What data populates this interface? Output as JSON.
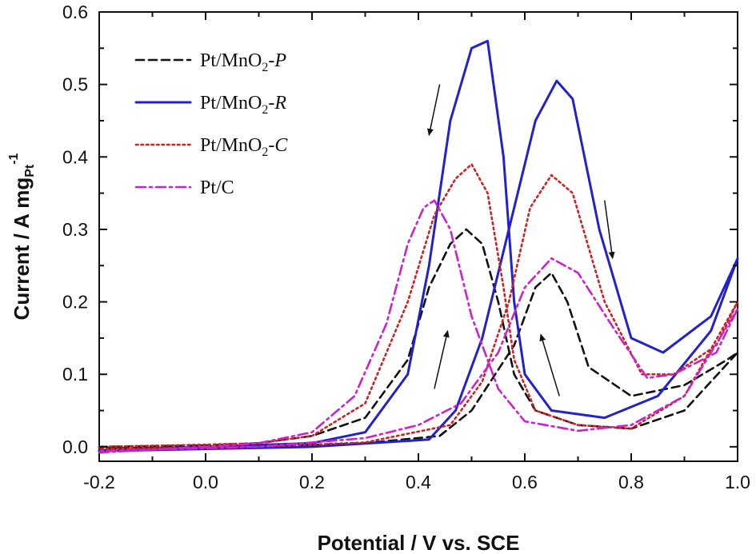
{
  "chart_data": {
    "type": "line",
    "xlabel": "Potential / V vs. SCE",
    "ylabel": "Current / A mg",
    "ylabel_sub": "Pt",
    "ylabel_sup": "-1",
    "xlim": [
      -0.2,
      1.0
    ],
    "ylim": [
      -0.02,
      0.6
    ],
    "xticks": [
      "-0.2",
      "0.0",
      "0.2",
      "0.4",
      "0.6",
      "0.8",
      "1.0"
    ],
    "yticks": [
      "0.0",
      "0.1",
      "0.2",
      "0.3",
      "0.4",
      "0.5",
      "0.6"
    ],
    "legend": {
      "placement": "top-left",
      "entries": [
        {
          "base": "Pt/MnO",
          "sub": "2",
          "suffix": "-P",
          "color": "#111111",
          "style": "dash"
        },
        {
          "base": "Pt/MnO",
          "sub": "2",
          "suffix": "-R",
          "color": "#2222cc",
          "style": "solid"
        },
        {
          "base": "Pt/MnO",
          "sub": "2",
          "suffix": "-C",
          "color": "#cc2222",
          "style": "dot"
        },
        {
          "base": "Pt/C",
          "sub": "",
          "suffix": "",
          "color": "#cc22cc",
          "style": "dashdot"
        }
      ]
    },
    "series": [
      {
        "name": "Pt/MnO2-P",
        "color": "#111111",
        "style": "dash",
        "points": [
          [
            -0.2,
            0.0
          ],
          [
            0.0,
            0.002
          ],
          [
            0.1,
            0.005
          ],
          [
            0.2,
            0.015
          ],
          [
            0.3,
            0.04
          ],
          [
            0.38,
            0.12
          ],
          [
            0.42,
            0.22
          ],
          [
            0.46,
            0.28
          ],
          [
            0.49,
            0.3
          ],
          [
            0.52,
            0.28
          ],
          [
            0.55,
            0.2
          ],
          [
            0.58,
            0.1
          ],
          [
            0.62,
            0.05
          ],
          [
            0.7,
            0.03
          ],
          [
            0.8,
            0.025
          ],
          [
            0.9,
            0.05
          ],
          [
            1.0,
            0.13
          ],
          [
            0.98,
            0.12
          ],
          [
            0.9,
            0.085
          ],
          [
            0.8,
            0.07
          ],
          [
            0.72,
            0.11
          ],
          [
            0.68,
            0.2
          ],
          [
            0.65,
            0.24
          ],
          [
            0.62,
            0.22
          ],
          [
            0.58,
            0.14
          ],
          [
            0.5,
            0.05
          ],
          [
            0.44,
            0.015
          ],
          [
            0.3,
            0.005
          ],
          [
            0.1,
            0.0
          ],
          [
            -0.2,
            -0.002
          ]
        ]
      },
      {
        "name": "Pt/MnO2-R",
        "color": "#2222cc",
        "style": "solid",
        "points": [
          [
            -0.2,
            -0.005
          ],
          [
            0.0,
            0.0
          ],
          [
            0.2,
            0.005
          ],
          [
            0.3,
            0.02
          ],
          [
            0.38,
            0.1
          ],
          [
            0.42,
            0.25
          ],
          [
            0.46,
            0.45
          ],
          [
            0.5,
            0.55
          ],
          [
            0.53,
            0.56
          ],
          [
            0.56,
            0.4
          ],
          [
            0.58,
            0.2
          ],
          [
            0.6,
            0.1
          ],
          [
            0.65,
            0.05
          ],
          [
            0.75,
            0.04
          ],
          [
            0.85,
            0.07
          ],
          [
            0.95,
            0.16
          ],
          [
            1.0,
            0.26
          ],
          [
            0.95,
            0.18
          ],
          [
            0.86,
            0.13
          ],
          [
            0.8,
            0.15
          ],
          [
            0.74,
            0.3
          ],
          [
            0.69,
            0.48
          ],
          [
            0.66,
            0.505
          ],
          [
            0.62,
            0.45
          ],
          [
            0.57,
            0.3
          ],
          [
            0.52,
            0.15
          ],
          [
            0.47,
            0.05
          ],
          [
            0.42,
            0.01
          ],
          [
            0.2,
            0.0
          ],
          [
            -0.2,
            -0.006
          ]
        ]
      },
      {
        "name": "Pt/MnO2-C",
        "color": "#cc2222",
        "style": "dot",
        "points": [
          [
            -0.2,
            0.0
          ],
          [
            0.0,
            0.003
          ],
          [
            0.1,
            0.005
          ],
          [
            0.2,
            0.015
          ],
          [
            0.3,
            0.06
          ],
          [
            0.38,
            0.2
          ],
          [
            0.43,
            0.32
          ],
          [
            0.47,
            0.37
          ],
          [
            0.5,
            0.39
          ],
          [
            0.53,
            0.35
          ],
          [
            0.56,
            0.22
          ],
          [
            0.58,
            0.12
          ],
          [
            0.62,
            0.05
          ],
          [
            0.7,
            0.03
          ],
          [
            0.8,
            0.025
          ],
          [
            0.9,
            0.07
          ],
          [
            1.0,
            0.2
          ],
          [
            0.96,
            0.14
          ],
          [
            0.88,
            0.1
          ],
          [
            0.82,
            0.1
          ],
          [
            0.75,
            0.2
          ],
          [
            0.69,
            0.35
          ],
          [
            0.65,
            0.375
          ],
          [
            0.61,
            0.33
          ],
          [
            0.57,
            0.2
          ],
          [
            0.52,
            0.09
          ],
          [
            0.46,
            0.03
          ],
          [
            0.3,
            0.006
          ],
          [
            0.1,
            0.0
          ],
          [
            -0.2,
            -0.003
          ]
        ]
      },
      {
        "name": "Pt/C",
        "color": "#cc22cc",
        "style": "dashdot",
        "points": [
          [
            -0.2,
            -0.008
          ],
          [
            0.0,
            0.0
          ],
          [
            0.1,
            0.005
          ],
          [
            0.2,
            0.02
          ],
          [
            0.28,
            0.07
          ],
          [
            0.34,
            0.17
          ],
          [
            0.38,
            0.28
          ],
          [
            0.41,
            0.33
          ],
          [
            0.43,
            0.34
          ],
          [
            0.46,
            0.3
          ],
          [
            0.5,
            0.18
          ],
          [
            0.55,
            0.08
          ],
          [
            0.6,
            0.035
          ],
          [
            0.7,
            0.022
          ],
          [
            0.8,
            0.03
          ],
          [
            0.9,
            0.07
          ],
          [
            1.0,
            0.19
          ],
          [
            0.96,
            0.13
          ],
          [
            0.88,
            0.1
          ],
          [
            0.83,
            0.095
          ],
          [
            0.77,
            0.16
          ],
          [
            0.7,
            0.24
          ],
          [
            0.65,
            0.26
          ],
          [
            0.6,
            0.22
          ],
          [
            0.55,
            0.13
          ],
          [
            0.48,
            0.06
          ],
          [
            0.4,
            0.03
          ],
          [
            0.3,
            0.012
          ],
          [
            0.1,
            0.0
          ],
          [
            -0.2,
            -0.006
          ]
        ]
      }
    ],
    "annotations": [
      {
        "type": "arrow",
        "from": [
          0.44,
          0.5
        ],
        "to": [
          0.42,
          0.43
        ],
        "label": ""
      },
      {
        "type": "arrow",
        "from": [
          0.75,
          0.34
        ],
        "to": [
          0.765,
          0.26
        ],
        "label": ""
      },
      {
        "type": "arrow",
        "from": [
          0.43,
          0.08
        ],
        "to": [
          0.455,
          0.16
        ],
        "label": ""
      },
      {
        "type": "arrow",
        "from": [
          0.665,
          0.07
        ],
        "to": [
          0.63,
          0.155
        ],
        "label": ""
      }
    ]
  }
}
